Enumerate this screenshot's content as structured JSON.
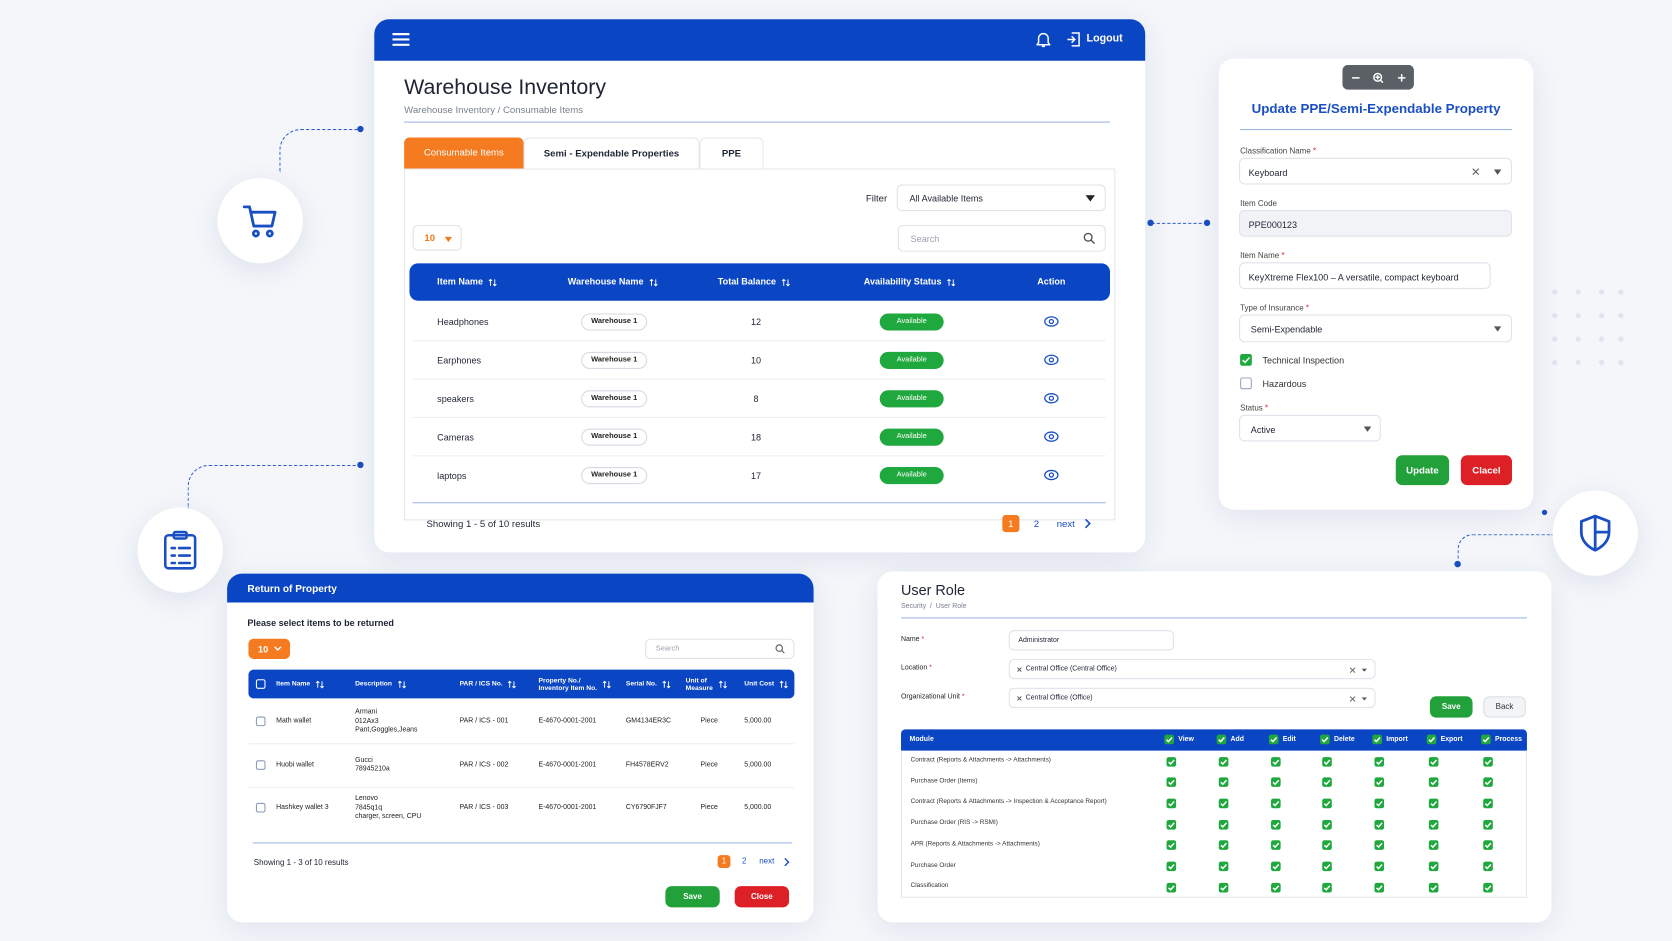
{
  "inventory": {
    "logout": "Logout",
    "title": "Warehouse Inventory",
    "breadcrumb": "Warehouse Inventory / Consumable Items",
    "tabs": [
      "Consumable Items",
      "Semi - Expendable Properties",
      "PPE"
    ],
    "filter_label": "Filter",
    "filter_value": "All Available Items",
    "page_size": "10",
    "search": "Search",
    "columns": [
      "Item Name",
      "Warehouse Name",
      "Total Balance",
      "Availability Status",
      "Action"
    ],
    "rows": [
      [
        "Headphones",
        "Warehouse 1",
        12,
        "Available"
      ],
      [
        "Earphones",
        "Warehouse 1",
        10,
        "Available"
      ],
      [
        "speakers",
        "Warehouse 1",
        8,
        "Available"
      ],
      [
        "Cameras",
        "Warehouse 1",
        18,
        "Available"
      ],
      [
        "laptops",
        "Warehouse 1",
        17,
        "Available"
      ]
    ],
    "summary": "Showing 1 - 5 of 10 results",
    "pages": [
      "1",
      "2"
    ],
    "next": "next"
  },
  "update_form": {
    "title": "Update PPE/Semi-Expendable Property",
    "required_mark": "*",
    "classification_label": "Classification Name",
    "classification_value": "Keyboard",
    "item_code_label": "Item Code",
    "item_code_value": "PPE000123",
    "item_name_label": "Item Name",
    "item_name_value": "KeyXtreme Flex100 – A versatile, compact keyboard",
    "insurance_label": "Type of Insurance",
    "insurance_value": "Semi-Expendable",
    "checkboxes": [
      {
        "label": "Technical Inspection",
        "checked": true
      },
      {
        "label": "Hazardous",
        "checked": false
      }
    ],
    "status_label": "Status",
    "status_value": "Active",
    "update": "Update",
    "cancel": "Clacel"
  },
  "return_property": {
    "title": "Return of Property",
    "instruction": "Please select items to be returned",
    "page_size": "10",
    "search": "Search",
    "columns": [
      "Item Name",
      "Description",
      "PAR / ICS No.",
      "Property No./\nInventory Item No.",
      "Serial No.",
      "Unit of\nMeasure",
      "Unit Cost"
    ],
    "rows": [
      [
        "Math wallet",
        "Armani\n012Ax3\nPant,Goggles,Jeans",
        "PAR / ICS - 001",
        "E-4670-0001-2001",
        "GM4134ER3C",
        "Piece",
        "5,000.00"
      ],
      [
        "Huobi wallet",
        "Gucci\n78945210a",
        "PAR / ICS - 002",
        "E-4670-0001-2001",
        "FH4578ERV2",
        "Piece",
        "5,000.00"
      ],
      [
        "Hashkey wallet 3",
        "Lenovo\n7845q1q\ncharger, screen, CPU",
        "PAR / ICS - 003",
        "E-4670-0001-2001",
        "CY6790FJF7",
        "Piece",
        "5,000.00"
      ]
    ],
    "summary": "Showing 1 - 3 of 10 results",
    "pages": [
      "1",
      "2"
    ],
    "next": "next",
    "save": "Save",
    "close": "Close"
  },
  "user_role": {
    "title": "User Role",
    "breadcrumb": "Security  /  User Role",
    "required_mark": "*",
    "fields": [
      {
        "label": "Name",
        "value": "Administrator"
      },
      {
        "label": "Location",
        "value": "Central Office (Central Office)"
      },
      {
        "label": "Organizational Unit",
        "value": "Central Office (Office)"
      }
    ],
    "save": "Save",
    "back": "Back",
    "columns": [
      "Module",
      "View",
      "Add",
      "Edit",
      "Delete",
      "Import",
      "Export",
      "Process"
    ],
    "modules": [
      "Contract (Reports & Attachments -> Attachments)",
      "Purchase Order (Items)",
      "Contract (Reports & Attachments -> Inspection & Acceptance Report)",
      "Purchase Order (RIS -> RSMI)",
      "APR (Reports & Attachments -> Attachments)",
      "Purchase Order",
      "Classification"
    ]
  }
}
